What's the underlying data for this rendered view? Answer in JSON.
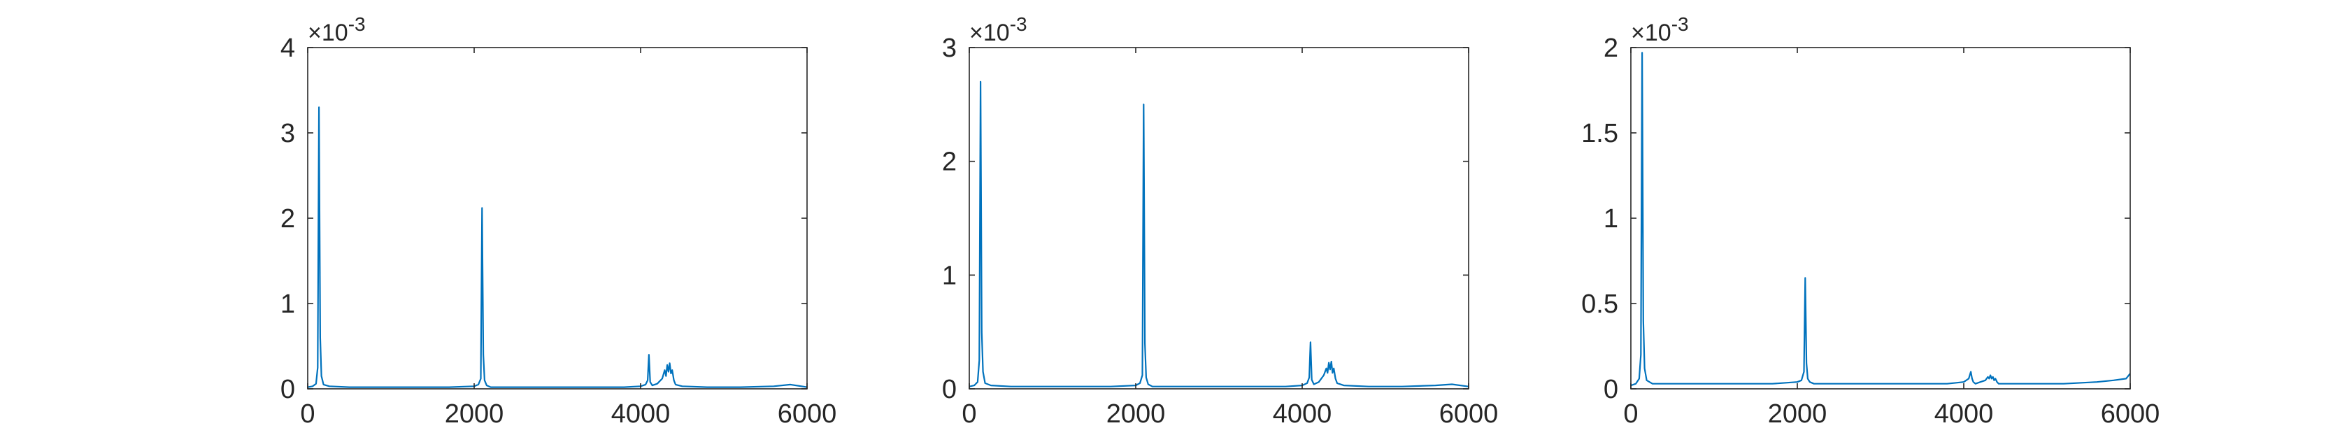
{
  "chart_data": [
    {
      "type": "line",
      "xlim": [
        0,
        6000
      ],
      "ylim": [
        0,
        0.004
      ],
      "y_exponent_label": "×10",
      "y_exponent_value": "-3",
      "xticks": [
        0,
        2000,
        4000,
        6000
      ],
      "xtick_labels": [
        "0",
        "2000",
        "4000",
        "6000"
      ],
      "yticks": [
        0,
        0.001,
        0.002,
        0.003,
        0.004
      ],
      "ytick_labels": [
        "0",
        "1",
        "2",
        "3",
        "4"
      ],
      "grid": false,
      "series": [
        {
          "color": "#0072BD",
          "x": [
            0,
            60,
            100,
            120,
            135,
            150,
            165,
            190,
            260,
            500,
            900,
            1300,
            1700,
            2000,
            2050,
            2080,
            2095,
            2110,
            2125,
            2150,
            2200,
            2600,
            3000,
            3400,
            3800,
            4000,
            4060,
            4085,
            4100,
            4115,
            4140,
            4200,
            4260,
            4290,
            4305,
            4320,
            4335,
            4350,
            4365,
            4380,
            4400,
            4420,
            4500,
            4800,
            5200,
            5600,
            5800,
            6000
          ],
          "y": [
            2e-05,
            3e-05,
            6e-05,
            0.00025,
            0.0033,
            0.0006,
            0.00015,
            5e-05,
            3e-05,
            2e-05,
            2e-05,
            2e-05,
            2e-05,
            3e-05,
            5e-05,
            0.00012,
            0.00212,
            0.0004,
            0.0001,
            4e-05,
            2e-05,
            2e-05,
            2e-05,
            2e-05,
            2e-05,
            3e-05,
            5e-05,
            0.0001,
            0.0004,
            8e-05,
            4e-05,
            6e-05,
            0.00012,
            0.00022,
            0.00015,
            0.00028,
            0.0002,
            0.0003,
            0.00018,
            0.00022,
            0.0001,
            5e-05,
            3e-05,
            2e-05,
            2e-05,
            3e-05,
            5e-05,
            2e-05
          ]
        }
      ]
    },
    {
      "type": "line",
      "xlim": [
        0,
        6000
      ],
      "ylim": [
        0,
        0.003
      ],
      "y_exponent_label": "×10",
      "y_exponent_value": "-3",
      "xticks": [
        0,
        2000,
        4000,
        6000
      ],
      "xtick_labels": [
        "0",
        "2000",
        "4000",
        "6000"
      ],
      "yticks": [
        0,
        0.001,
        0.002,
        0.003
      ],
      "ytick_labels": [
        "0",
        "1",
        "2",
        "3"
      ],
      "grid": false,
      "series": [
        {
          "color": "#0072BD",
          "x": [
            0,
            60,
            100,
            120,
            135,
            150,
            165,
            190,
            260,
            500,
            900,
            1300,
            1700,
            2000,
            2050,
            2080,
            2095,
            2110,
            2125,
            2150,
            2200,
            2600,
            3000,
            3400,
            3800,
            4000,
            4060,
            4085,
            4100,
            4115,
            4140,
            4200,
            4260,
            4290,
            4305,
            4320,
            4335,
            4350,
            4365,
            4380,
            4400,
            4420,
            4500,
            4800,
            5200,
            5600,
            5800,
            6000
          ],
          "y": [
            2e-05,
            3e-05,
            6e-05,
            0.00025,
            0.0027,
            0.0005,
            0.00015,
            5e-05,
            3e-05,
            2e-05,
            2e-05,
            2e-05,
            2e-05,
            3e-05,
            5e-05,
            0.00012,
            0.0025,
            0.0004,
            0.0001,
            4e-05,
            2e-05,
            2e-05,
            2e-05,
            2e-05,
            2e-05,
            3e-05,
            5e-05,
            0.0001,
            0.00041,
            8e-05,
            4e-05,
            6e-05,
            0.00012,
            0.00018,
            0.00014,
            0.00023,
            0.00017,
            0.00024,
            0.00014,
            0.00018,
            9e-05,
            5e-05,
            3e-05,
            2e-05,
            2e-05,
            3e-05,
            4e-05,
            2e-05
          ]
        }
      ]
    },
    {
      "type": "line",
      "xlim": [
        0,
        6000
      ],
      "ylim": [
        0,
        0.002
      ],
      "y_exponent_label": "×10",
      "y_exponent_value": "-3",
      "xticks": [
        0,
        2000,
        4000,
        6000
      ],
      "xtick_labels": [
        "0",
        "2000",
        "4000",
        "6000"
      ],
      "yticks": [
        0,
        0.0005,
        0.001,
        0.0015,
        0.002
      ],
      "ytick_labels": [
        "0",
        "0.5",
        "1",
        "1.5",
        "2"
      ],
      "grid": false,
      "series": [
        {
          "color": "#0072BD",
          "x": [
            0,
            60,
            100,
            120,
            135,
            150,
            165,
            190,
            260,
            500,
            900,
            1300,
            1700,
            2000,
            2050,
            2080,
            2095,
            2110,
            2125,
            2150,
            2200,
            2600,
            3000,
            3400,
            3800,
            4000,
            4060,
            4085,
            4100,
            4115,
            4140,
            4200,
            4260,
            4290,
            4305,
            4320,
            4335,
            4350,
            4365,
            4380,
            4400,
            4420,
            4500,
            4800,
            5200,
            5600,
            5800,
            5950,
            6000
          ],
          "y": [
            2e-05,
            3e-05,
            6e-05,
            0.0002,
            0.00197,
            0.0004,
            0.00012,
            5e-05,
            3e-05,
            3e-05,
            3e-05,
            3e-05,
            3e-05,
            4e-05,
            5e-05,
            0.0001,
            0.00065,
            0.00015,
            6e-05,
            4e-05,
            3e-05,
            3e-05,
            3e-05,
            3e-05,
            3e-05,
            4e-05,
            6e-05,
            0.0001,
            6e-05,
            4e-05,
            3e-05,
            4e-05,
            5e-05,
            7e-05,
            6e-05,
            8e-05,
            6e-05,
            7e-05,
            5e-05,
            6e-05,
            4e-05,
            3e-05,
            3e-05,
            3e-05,
            3e-05,
            4e-05,
            5e-05,
            6e-05,
            9e-05
          ]
        }
      ]
    }
  ]
}
